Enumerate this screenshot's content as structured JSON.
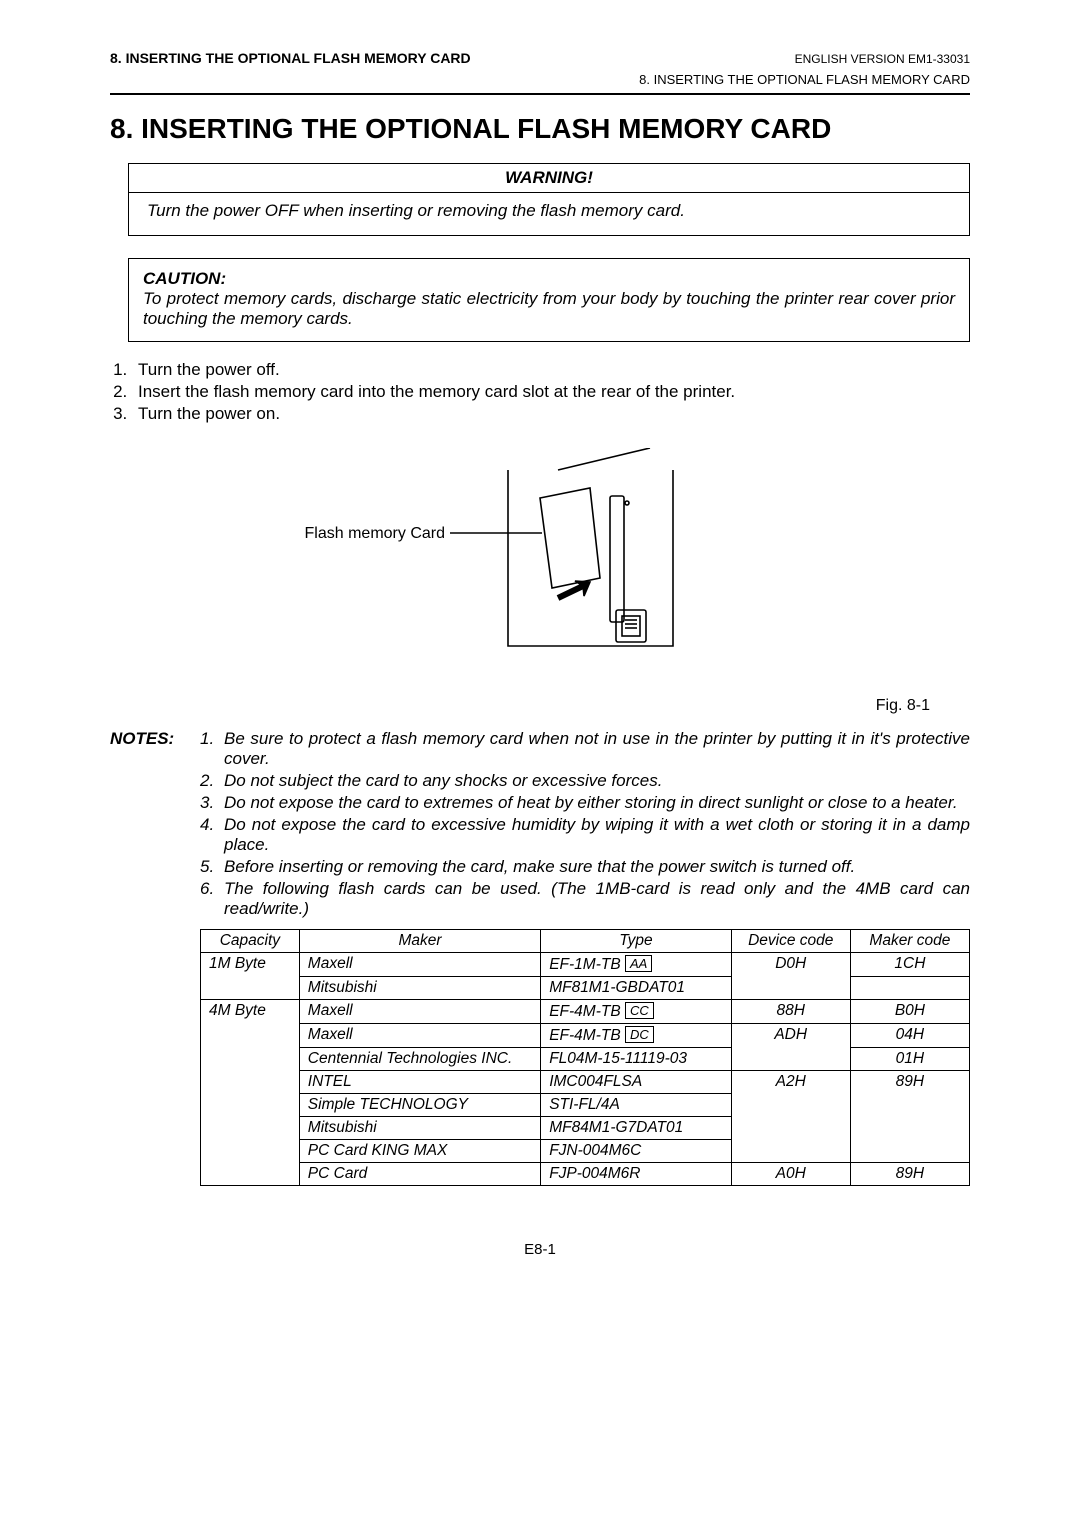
{
  "header": {
    "section_title_short": "8.  INSERTING THE OPTIONAL FLASH MEMORY CARD",
    "version": "ENGLISH VERSION EM1-33031",
    "breadcrumb": "8. INSERTING THE OPTIONAL FLASH MEMORY CARD"
  },
  "title": "8. INSERTING THE OPTIONAL FLASH MEMORY CARD",
  "warning": {
    "label": "WARNING!",
    "body": "Turn the power OFF when inserting or removing the flash memory card."
  },
  "caution": {
    "label": "CAUTION:",
    "body": "To protect memory cards, discharge static electricity from your body by touching the printer rear cover prior touching the memory cards."
  },
  "steps": [
    "Turn the power off.",
    "Insert the flash memory card into the memory card slot at the rear of the printer.",
    "Turn the power on."
  ],
  "diagram": {
    "label": "Flash memory Card",
    "caption": "Fig. 8-1"
  },
  "notes_label": "NOTES:",
  "notes": [
    "Be sure to protect a flash memory card when not in use in the printer by putting it in it's protective cover.",
    "Do not subject the card to any shocks or excessive forces.",
    "Do not expose the card to extremes of heat by either storing in direct sunlight or close to a heater.",
    "Do not expose the card to excessive humidity by wiping it with a wet cloth or storing it in a damp place.",
    "Before inserting or removing the card, make sure that the power switch is turned off.",
    "The following flash cards can be used.  (The 1MB-card is read only and the 4MB card can read/write.)"
  ],
  "table": {
    "headers": {
      "capacity": "Capacity",
      "maker": "Maker",
      "type": "Type",
      "device": "Device code",
      "makercode": "Maker code"
    },
    "rows": [
      {
        "capacity": "1M Byte",
        "maker": "Maxell",
        "type_prefix": "EF-1M-TB ",
        "type_box": "AA",
        "device": "D0H",
        "makercode": "1CH",
        "cap_rowspan_open": true,
        "dev_rowspan_open": true
      },
      {
        "capacity": "",
        "maker": "Mitsubishi",
        "type_prefix": "MF81M1-GBDAT01",
        "type_box": "",
        "device": "",
        "makercode": "",
        "cap_cont": true,
        "dev_cont": true
      },
      {
        "capacity": "4M Byte",
        "maker": "Maxell",
        "type_prefix": "EF-4M-TB ",
        "type_box": "CC",
        "device": "88H",
        "makercode": "B0H",
        "cap_rowspan_open": true
      },
      {
        "capacity": "",
        "maker": "Maxell",
        "type_prefix": "EF-4M-TB ",
        "type_box": "DC",
        "device": "ADH",
        "makercode": "04H",
        "cap_cont": true,
        "dev_rowspan_open": true
      },
      {
        "capacity": "",
        "maker": "Centennial Technologies INC.",
        "type_prefix": "FL04M-15-11119-03",
        "type_box": "",
        "device": "",
        "makercode": "01H",
        "cap_cont": true,
        "dev_cont": true
      },
      {
        "capacity": "",
        "maker": "INTEL",
        "type_prefix": "IMC004FLSA",
        "type_box": "",
        "device": "A2H",
        "makercode": "89H",
        "cap_cont": true,
        "dev_rowspan_open": true
      },
      {
        "capacity": "",
        "maker": "Simple TECHNOLOGY",
        "type_prefix": "STI-FL/4A",
        "type_box": "",
        "device": "",
        "makercode": "",
        "cap_cont": true,
        "dev_cont": true,
        "mk_cont": true
      },
      {
        "capacity": "",
        "maker": "Mitsubishi",
        "type_prefix": "MF84M1-G7DAT01",
        "type_box": "",
        "device": "",
        "makercode": "",
        "cap_cont": true,
        "dev_cont": true,
        "mk_cont": true
      },
      {
        "capacity": "",
        "maker": "PC Card KING MAX",
        "type_prefix": "FJN-004M6C",
        "type_box": "",
        "device": "",
        "makercode": "",
        "cap_cont": true,
        "dev_cont": true,
        "mk_cont": true
      },
      {
        "capacity": "",
        "maker": "PC Card",
        "type_prefix": "FJP-004M6R",
        "type_box": "",
        "device": "A0H",
        "makercode": "89H",
        "cap_cont": true
      }
    ]
  },
  "page_number": "E8-1"
}
